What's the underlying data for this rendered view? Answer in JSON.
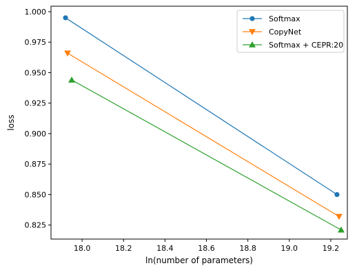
{
  "chart_data": {
    "type": "line",
    "title": "",
    "xlabel": "ln(number of parameters)",
    "ylabel": "loss",
    "xlim": [
      17.85,
      19.28
    ],
    "ylim": [
      0.8135,
      1.0045
    ],
    "xticks": [
      18.0,
      18.2,
      18.4,
      18.6,
      18.8,
      19.0,
      19.2
    ],
    "xtick_labels": [
      "18.0",
      "18.2",
      "18.4",
      "18.6",
      "18.8",
      "19.0",
      "19.2"
    ],
    "yticks": [
      0.825,
      0.85,
      0.875,
      0.9,
      0.925,
      0.95,
      0.975,
      1.0
    ],
    "ytick_labels": [
      "0.825",
      "0.850",
      "0.875",
      "0.900",
      "0.925",
      "0.950",
      "0.975",
      "1.000"
    ],
    "grid": false,
    "legend_position": "top-right",
    "series": [
      {
        "name": "Softmax",
        "color": "#1f77b4",
        "marker": "circle",
        "points": [
          {
            "x": 17.92,
            "y": 0.995
          },
          {
            "x": 19.23,
            "y": 0.85
          }
        ]
      },
      {
        "name": "CopyNet",
        "color": "#ff7f0e",
        "marker": "triangle-down",
        "points": [
          {
            "x": 17.93,
            "y": 0.966
          },
          {
            "x": 19.24,
            "y": 0.832
          }
        ]
      },
      {
        "name": "Softmax + CEPR:20",
        "color": "#2ca02c",
        "marker": "triangle-up",
        "points": [
          {
            "x": 17.95,
            "y": 0.944
          },
          {
            "x": 19.25,
            "y": 0.821
          }
        ]
      }
    ]
  }
}
